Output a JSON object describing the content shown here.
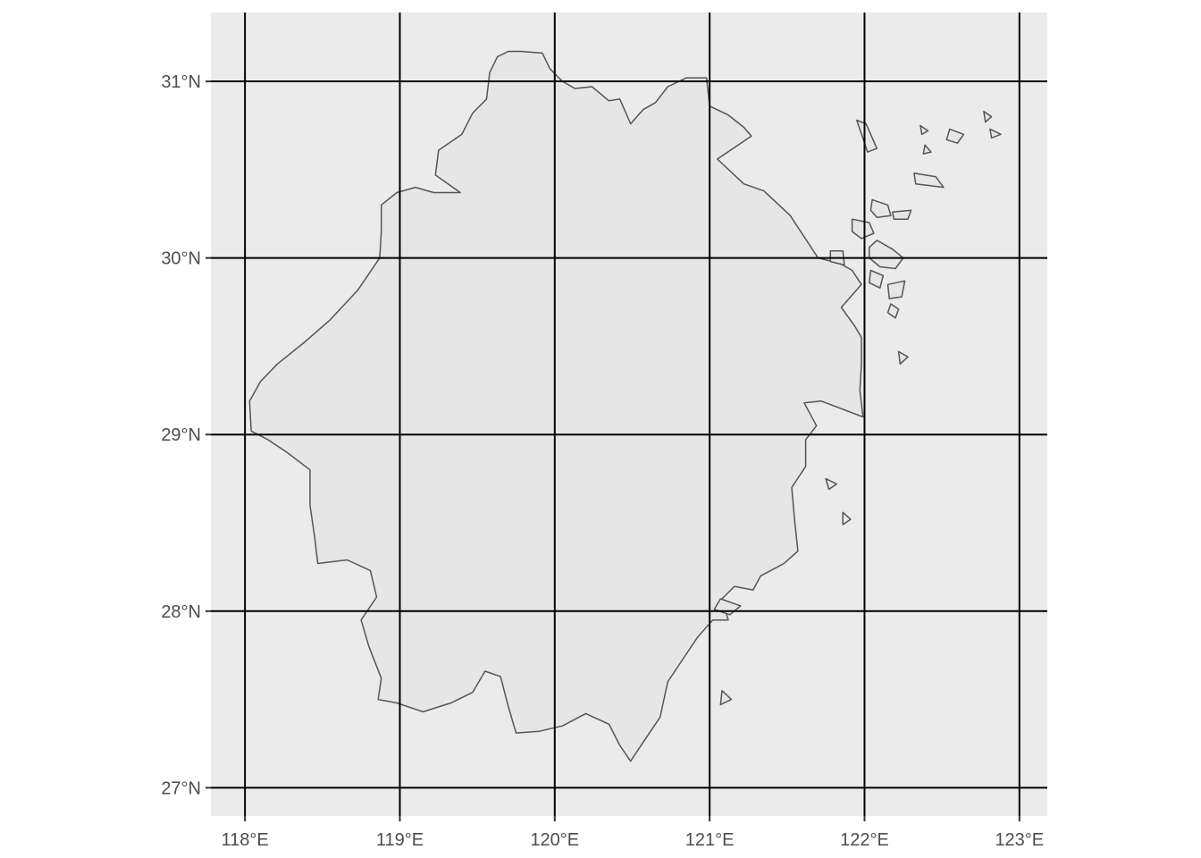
{
  "colors": {
    "panel_background": "#ebebeb",
    "land_fill": "#e6e6e6",
    "land_outline": "#555555",
    "graticule": "#000000",
    "tick_label": "#4d4d4d"
  },
  "map": {
    "lon_range": [
      117.78,
      123.18
    ],
    "lat_range": [
      26.84,
      31.39
    ],
    "lon_ticks": [
      {
        "value": 118,
        "label": "118°E"
      },
      {
        "value": 119,
        "label": "119°E"
      },
      {
        "value": 120,
        "label": "120°E"
      },
      {
        "value": 121,
        "label": "121°E"
      },
      {
        "value": 122,
        "label": "122°E"
      },
      {
        "value": 123,
        "label": "123°E"
      }
    ],
    "lat_ticks": [
      {
        "value": 31,
        "label": "31°N"
      },
      {
        "value": 30,
        "label": "30°N"
      },
      {
        "value": 29,
        "label": "29°N"
      },
      {
        "value": 28,
        "label": "28°N"
      },
      {
        "value": 27,
        "label": "27°N"
      }
    ],
    "mainland": [
      [
        119.78,
        31.17
      ],
      [
        119.92,
        31.16
      ],
      [
        119.97,
        31.07
      ],
      [
        120.05,
        31.0
      ],
      [
        120.13,
        30.96
      ],
      [
        120.24,
        30.97
      ],
      [
        120.35,
        30.89
      ],
      [
        120.42,
        30.9
      ],
      [
        120.49,
        30.76
      ],
      [
        120.57,
        30.84
      ],
      [
        120.65,
        30.88
      ],
      [
        120.73,
        30.97
      ],
      [
        120.85,
        31.02
      ],
      [
        120.98,
        31.02
      ],
      [
        121.0,
        30.86
      ],
      [
        121.12,
        30.81
      ],
      [
        121.22,
        30.74
      ],
      [
        121.27,
        30.69
      ],
      [
        121.05,
        30.56
      ],
      [
        121.22,
        30.42
      ],
      [
        121.35,
        30.38
      ],
      [
        121.52,
        30.24
      ],
      [
        121.7,
        30.0
      ],
      [
        121.84,
        29.97
      ],
      [
        121.92,
        29.93
      ],
      [
        121.98,
        29.85
      ],
      [
        121.85,
        29.72
      ],
      [
        121.94,
        29.61
      ],
      [
        121.98,
        29.55
      ],
      [
        121.98,
        29.4
      ],
      [
        121.97,
        29.25
      ],
      [
        121.99,
        29.1
      ],
      [
        121.72,
        29.19
      ],
      [
        121.61,
        29.18
      ],
      [
        121.69,
        29.05
      ],
      [
        121.62,
        28.97
      ],
      [
        121.62,
        28.82
      ],
      [
        121.53,
        28.7
      ],
      [
        121.55,
        28.5
      ],
      [
        121.57,
        28.34
      ],
      [
        121.48,
        28.27
      ],
      [
        121.33,
        28.2
      ],
      [
        121.28,
        28.12
      ],
      [
        121.16,
        28.14
      ],
      [
        121.08,
        28.07
      ],
      [
        121.12,
        27.95
      ],
      [
        121.02,
        27.95
      ],
      [
        120.92,
        27.85
      ],
      [
        120.73,
        27.6
      ],
      [
        120.68,
        27.4
      ],
      [
        120.55,
        27.23
      ],
      [
        120.49,
        27.15
      ],
      [
        120.42,
        27.24
      ],
      [
        120.35,
        27.36
      ],
      [
        120.2,
        27.42
      ],
      [
        120.05,
        27.35
      ],
      [
        119.9,
        27.32
      ],
      [
        119.75,
        27.31
      ],
      [
        119.7,
        27.46
      ],
      [
        119.65,
        27.63
      ],
      [
        119.55,
        27.66
      ],
      [
        119.47,
        27.54
      ],
      [
        119.33,
        27.48
      ],
      [
        119.15,
        27.43
      ],
      [
        118.98,
        27.48
      ],
      [
        118.86,
        27.5
      ],
      [
        118.88,
        27.62
      ],
      [
        118.8,
        27.8
      ],
      [
        118.75,
        27.95
      ],
      [
        118.85,
        28.08
      ],
      [
        118.81,
        28.23
      ],
      [
        118.66,
        28.29
      ],
      [
        118.47,
        28.27
      ],
      [
        118.45,
        28.42
      ],
      [
        118.42,
        28.6
      ],
      [
        118.42,
        28.8
      ],
      [
        118.27,
        28.9
      ],
      [
        118.15,
        28.97
      ],
      [
        118.04,
        29.02
      ],
      [
        118.03,
        29.19
      ],
      [
        118.1,
        29.3
      ],
      [
        118.21,
        29.4
      ],
      [
        118.38,
        29.52
      ],
      [
        118.55,
        29.65
      ],
      [
        118.73,
        29.82
      ],
      [
        118.87,
        30.0
      ],
      [
        118.88,
        30.15
      ],
      [
        118.88,
        30.3
      ],
      [
        118.98,
        30.37
      ],
      [
        119.1,
        30.4
      ],
      [
        119.22,
        30.37
      ],
      [
        119.39,
        30.37
      ],
      [
        119.23,
        30.47
      ],
      [
        119.25,
        30.61
      ],
      [
        119.4,
        30.7
      ],
      [
        119.47,
        30.82
      ],
      [
        119.56,
        30.9
      ],
      [
        119.58,
        31.05
      ],
      [
        119.63,
        31.14
      ],
      [
        119.7,
        31.17
      ]
    ],
    "islands": [
      [
        [
          122.08,
          30.1
        ],
        [
          122.18,
          30.05
        ],
        [
          122.25,
          30.0
        ],
        [
          122.2,
          29.94
        ],
        [
          122.1,
          29.95
        ],
        [
          122.03,
          30.0
        ],
        [
          122.03,
          30.06
        ]
      ],
      [
        [
          121.92,
          30.22
        ],
        [
          122.03,
          30.2
        ],
        [
          122.06,
          30.14
        ],
        [
          121.98,
          30.11
        ],
        [
          121.92,
          30.15
        ]
      ],
      [
        [
          122.05,
          30.33
        ],
        [
          122.15,
          30.3
        ],
        [
          122.17,
          30.24
        ],
        [
          122.08,
          30.23
        ],
        [
          122.04,
          30.27
        ]
      ],
      [
        [
          122.18,
          30.26
        ],
        [
          122.3,
          30.27
        ],
        [
          122.28,
          30.22
        ],
        [
          122.19,
          30.22
        ]
      ],
      [
        [
          121.95,
          30.78
        ],
        [
          122.02,
          30.6
        ],
        [
          122.08,
          30.62
        ],
        [
          122.01,
          30.76
        ]
      ],
      [
        [
          121.78,
          30.04
        ],
        [
          121.86,
          30.04
        ],
        [
          121.87,
          29.96
        ],
        [
          121.78,
          29.98
        ]
      ],
      [
        [
          122.32,
          30.48
        ],
        [
          122.46,
          30.46
        ],
        [
          122.51,
          30.4
        ],
        [
          122.33,
          30.42
        ]
      ],
      [
        [
          122.04,
          29.93
        ],
        [
          122.12,
          29.9
        ],
        [
          122.1,
          29.83
        ],
        [
          122.03,
          29.86
        ]
      ],
      [
        [
          122.15,
          29.85
        ],
        [
          122.26,
          29.87
        ],
        [
          122.24,
          29.78
        ],
        [
          122.16,
          29.77
        ]
      ],
      [
        [
          122.17,
          29.74
        ],
        [
          122.22,
          29.71
        ],
        [
          122.2,
          29.66
        ],
        [
          122.15,
          29.69
        ]
      ],
      [
        [
          122.55,
          30.73
        ],
        [
          122.64,
          30.7
        ],
        [
          122.6,
          30.65
        ],
        [
          122.53,
          30.67
        ]
      ],
      [
        [
          122.77,
          30.83
        ],
        [
          122.82,
          30.8
        ],
        [
          122.78,
          30.77
        ]
      ],
      [
        [
          122.81,
          30.73
        ],
        [
          122.88,
          30.7
        ],
        [
          122.82,
          30.68
        ]
      ],
      [
        [
          122.36,
          30.75
        ],
        [
          122.41,
          30.72
        ],
        [
          122.37,
          30.7
        ]
      ],
      [
        [
          122.39,
          30.64
        ],
        [
          122.43,
          30.6
        ],
        [
          122.38,
          30.59
        ]
      ],
      [
        [
          122.22,
          29.47
        ],
        [
          122.28,
          29.44
        ],
        [
          122.23,
          29.4
        ]
      ],
      [
        [
          121.07,
          28.07
        ],
        [
          121.2,
          28.03
        ],
        [
          121.13,
          27.98
        ],
        [
          121.03,
          28.01
        ]
      ],
      [
        [
          121.08,
          27.55
        ],
        [
          121.14,
          27.5
        ],
        [
          121.07,
          27.47
        ]
      ],
      [
        [
          121.75,
          28.75
        ],
        [
          121.82,
          28.72
        ],
        [
          121.77,
          28.69
        ]
      ],
      [
        [
          121.86,
          28.56
        ],
        [
          121.91,
          28.52
        ],
        [
          121.86,
          28.49
        ]
      ]
    ]
  }
}
